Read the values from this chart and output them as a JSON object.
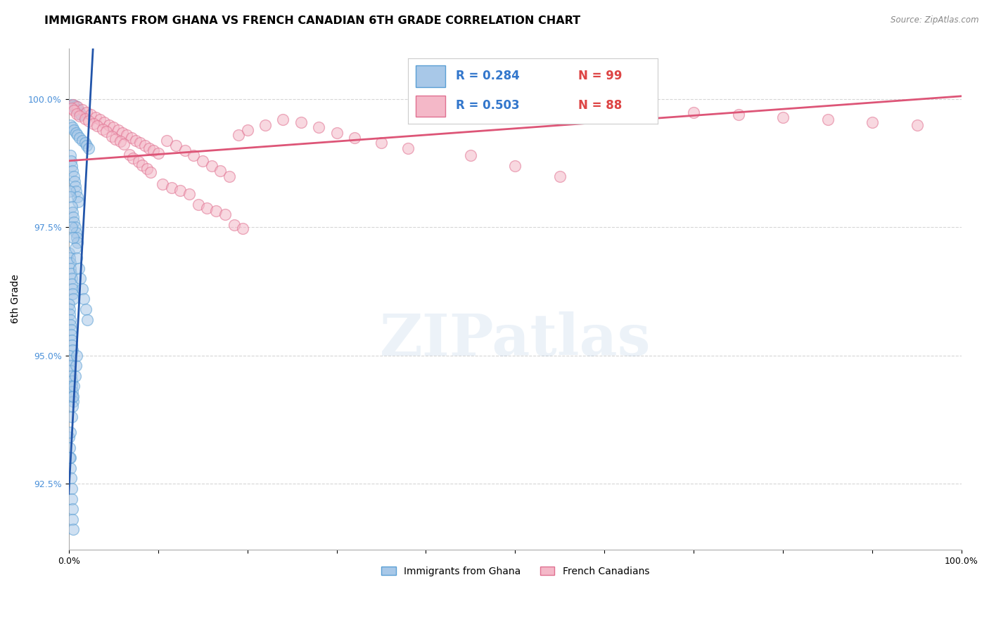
{
  "title": "IMMIGRANTS FROM GHANA VS FRENCH CANADIAN 6TH GRADE CORRELATION CHART",
  "source": "Source: ZipAtlas.com",
  "ylabel": "6th Grade",
  "yticks": [
    92.5,
    95.0,
    97.5,
    100.0
  ],
  "ytick_labels": [
    "92.5%",
    "95.0%",
    "97.5%",
    "100.0%"
  ],
  "xlim": [
    0.0,
    100.0
  ],
  "ylim": [
    91.2,
    101.0
  ],
  "blue_color": "#a8c8e8",
  "blue_edge": "#5a9fd4",
  "pink_color": "#f4b8c8",
  "pink_edge": "#e07090",
  "blue_line_color": "#2255aa",
  "pink_line_color": "#dd5577",
  "legend_label1": "Immigrants from Ghana",
  "legend_label2": "French Canadians",
  "watermark": "ZIPatlas",
  "title_fontsize": 11.5,
  "label_fontsize": 10,
  "tick_fontsize": 9,
  "ghana_x": [
    0.3,
    0.5,
    0.6,
    0.7,
    0.8,
    1.0,
    1.1,
    1.2,
    1.3,
    1.4,
    0.2,
    0.4,
    0.6,
    0.8,
    1.0,
    1.2,
    1.5,
    1.8,
    2.0,
    2.2,
    0.15,
    0.25,
    0.35,
    0.45,
    0.55,
    0.65,
    0.75,
    0.85,
    0.95,
    1.05,
    0.1,
    0.2,
    0.3,
    0.4,
    0.5,
    0.6,
    0.7,
    0.8,
    0.9,
    1.0,
    0.05,
    0.1,
    0.15,
    0.2,
    0.25,
    0.3,
    0.35,
    0.4,
    0.45,
    0.5,
    0.05,
    0.08,
    0.12,
    0.16,
    0.2,
    0.24,
    0.28,
    0.32,
    0.36,
    0.4,
    0.05,
    0.1,
    0.15,
    0.2,
    0.25,
    0.3,
    0.35,
    0.4,
    0.45,
    0.5,
    0.3,
    0.5,
    0.7,
    0.9,
    1.1,
    1.3,
    1.5,
    1.7,
    1.9,
    2.1,
    0.05,
    0.1,
    0.15,
    0.2,
    0.25,
    0.3,
    0.35,
    0.4,
    0.45,
    0.5,
    0.1,
    0.2,
    0.3,
    0.4,
    0.5,
    0.6,
    0.7,
    0.8,
    0.9
  ],
  "ghana_y": [
    99.9,
    99.85,
    99.88,
    99.82,
    99.87,
    99.8,
    99.78,
    99.75,
    99.72,
    99.7,
    99.5,
    99.45,
    99.4,
    99.35,
    99.3,
    99.25,
    99.2,
    99.15,
    99.1,
    99.05,
    98.9,
    98.8,
    98.7,
    98.6,
    98.5,
    98.4,
    98.3,
    98.2,
    98.1,
    98.0,
    98.2,
    98.1,
    97.9,
    97.8,
    97.7,
    97.6,
    97.5,
    97.4,
    97.3,
    97.2,
    97.0,
    96.9,
    96.8,
    96.7,
    96.6,
    96.5,
    96.4,
    96.3,
    96.2,
    96.1,
    96.0,
    95.9,
    95.8,
    95.7,
    95.6,
    95.5,
    95.4,
    95.3,
    95.2,
    95.1,
    95.0,
    94.9,
    94.8,
    94.7,
    94.6,
    94.5,
    94.4,
    94.3,
    94.2,
    94.1,
    97.5,
    97.3,
    97.1,
    96.9,
    96.7,
    96.5,
    96.3,
    96.1,
    95.9,
    95.7,
    93.4,
    93.2,
    93.0,
    92.8,
    92.6,
    92.4,
    92.2,
    92.0,
    91.8,
    91.6,
    93.0,
    93.5,
    93.8,
    94.0,
    94.2,
    94.4,
    94.6,
    94.8,
    95.0
  ],
  "french_x": [
    0.5,
    1.0,
    1.5,
    2.0,
    2.5,
    3.0,
    3.5,
    4.0,
    4.5,
    5.0,
    5.5,
    6.0,
    6.5,
    7.0,
    7.5,
    8.0,
    8.5,
    9.0,
    9.5,
    10.0,
    11.0,
    12.0,
    13.0,
    14.0,
    15.0,
    16.0,
    17.0,
    18.0,
    19.0,
    20.0,
    22.0,
    24.0,
    26.0,
    28.0,
    30.0,
    32.0,
    35.0,
    38.0,
    0.3,
    0.6,
    0.9,
    1.2,
    1.8,
    2.2,
    2.8,
    3.2,
    3.8,
    4.2,
    4.8,
    5.2,
    5.8,
    6.2,
    6.8,
    7.2,
    7.8,
    8.2,
    8.8,
    9.2,
    10.5,
    11.5,
    12.5,
    13.5,
    14.5,
    15.5,
    16.5,
    17.5,
    18.5,
    19.5,
    60.0,
    65.0,
    70.0,
    75.0,
    80.0,
    85.0,
    90.0,
    95.0,
    45.0,
    50.0,
    55.0
  ],
  "french_y": [
    99.9,
    99.85,
    99.8,
    99.75,
    99.7,
    99.65,
    99.6,
    99.55,
    99.5,
    99.45,
    99.4,
    99.35,
    99.3,
    99.25,
    99.2,
    99.15,
    99.1,
    99.05,
    99.0,
    98.95,
    99.2,
    99.1,
    99.0,
    98.9,
    98.8,
    98.7,
    98.6,
    98.5,
    99.3,
    99.4,
    99.5,
    99.6,
    99.55,
    99.45,
    99.35,
    99.25,
    99.15,
    99.05,
    99.82,
    99.78,
    99.72,
    99.68,
    99.62,
    99.58,
    99.52,
    99.48,
    99.42,
    99.38,
    99.28,
    99.22,
    99.18,
    99.12,
    98.92,
    98.85,
    98.78,
    98.72,
    98.65,
    98.58,
    98.35,
    98.28,
    98.22,
    98.15,
    97.95,
    97.88,
    97.82,
    97.75,
    97.55,
    97.48,
    99.85,
    99.8,
    99.75,
    99.7,
    99.65,
    99.6,
    99.55,
    99.5,
    98.9,
    98.7,
    98.5
  ]
}
